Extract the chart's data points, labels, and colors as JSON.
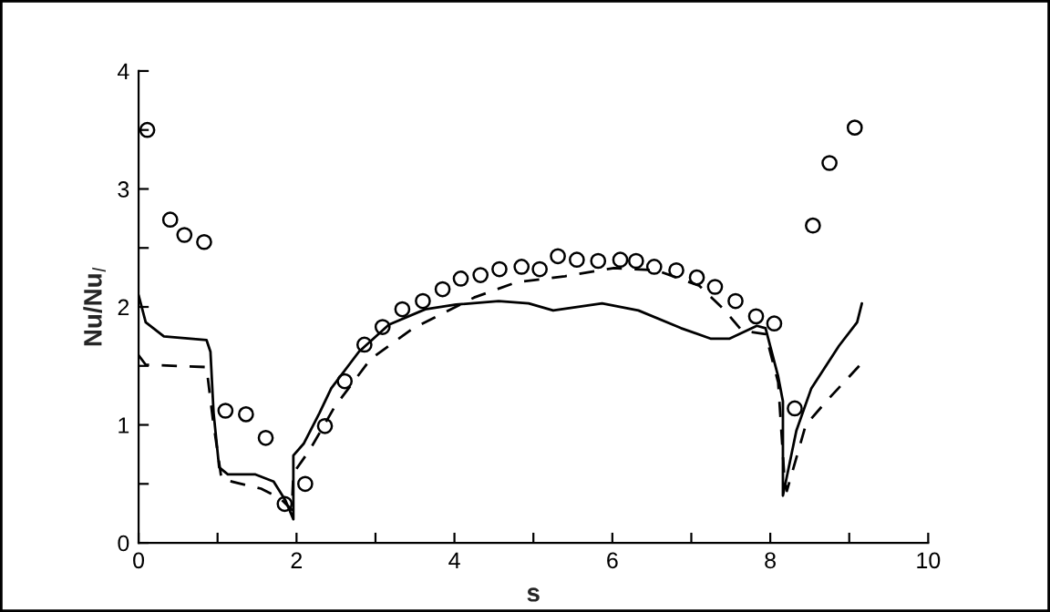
{
  "chart_data": {
    "type": "line",
    "xlabel": "s",
    "ylabel": "Nu/Nu$_{l}$",
    "xlim": [
      0,
      10
    ],
    "ylim": [
      0,
      4
    ],
    "xticks": [
      0,
      {
        "value": 1,
        "label": null
      },
      2,
      {
        "value": 3,
        "label": null
      },
      4,
      {
        "value": 5,
        "label": null
      },
      6,
      {
        "value": 7,
        "label": null
      },
      8,
      {
        "value": 9,
        "label": null
      },
      10
    ],
    "yticks": [
      0,
      {
        "value": 0.5,
        "label": null
      },
      1,
      {
        "value": 1.5,
        "label": null
      },
      2,
      {
        "value": 2.5,
        "label": null
      },
      3,
      {
        "value": 3.5,
        "label": null
      },
      4
    ],
    "grid": false,
    "legend": false,
    "series": [
      {
        "type": "scatter",
        "marker": "circle",
        "color": "#000000",
        "x": [
          0.11,
          0.4,
          0.58,
          0.83,
          1.1,
          1.36,
          1.61,
          1.85,
          2.11,
          2.36,
          2.61,
          2.86,
          3.09,
          3.34,
          3.6,
          3.85,
          4.08,
          4.33,
          4.57,
          4.85,
          5.08,
          5.31,
          5.55,
          5.82,
          6.1,
          6.3,
          6.53,
          6.81,
          7.07,
          7.3,
          7.56,
          7.82,
          8.05,
          8.31,
          8.54,
          8.75,
          9.07
        ],
        "values": [
          3.5,
          2.74,
          2.61,
          2.55,
          1.12,
          1.09,
          0.89,
          0.33,
          0.5,
          0.99,
          1.37,
          1.68,
          1.83,
          1.98,
          2.05,
          2.15,
          2.24,
          2.27,
          2.32,
          2.34,
          2.32,
          2.43,
          2.4,
          2.39,
          2.4,
          2.39,
          2.34,
          2.31,
          2.25,
          2.17,
          2.05,
          1.92,
          1.86,
          1.14,
          2.69,
          3.22,
          3.52
        ]
      },
      {
        "type": "line",
        "marker": "none",
        "line_style": "solid",
        "color": "#000000",
        "x": [
          0,
          0.09,
          0.32,
          0.86,
          0.91,
          0.95,
          1.02,
          1.13,
          1.48,
          1.71,
          1.86,
          1.96,
          1.96,
          2.09,
          2.29,
          2.44,
          2.79,
          3.17,
          3.63,
          4.02,
          4.56,
          4.94,
          5.25,
          5.87,
          6.33,
          6.87,
          7.25,
          7.48,
          7.83,
          7.94,
          8.1,
          8.16,
          8.16,
          8.33,
          8.52,
          8.87,
          9.1,
          9.16
        ],
        "values": [
          2.1,
          1.87,
          1.75,
          1.72,
          1.62,
          1.1,
          0.64,
          0.58,
          0.58,
          0.52,
          0.36,
          0.2,
          0.74,
          0.84,
          1.1,
          1.31,
          1.62,
          1.85,
          1.98,
          2.02,
          2.05,
          2.03,
          1.97,
          2.03,
          1.97,
          1.82,
          1.73,
          1.73,
          1.84,
          1.82,
          1.41,
          1.2,
          0.4,
          0.95,
          1.31,
          1.67,
          1.87,
          2.03
        ]
      },
      {
        "type": "line",
        "marker": "none",
        "line_style": "dashed",
        "color": "#000000",
        "x": [
          0,
          0.09,
          0.86,
          0.94,
          1.05,
          1.55,
          1.79,
          1.94,
          1.96,
          2.17,
          2.48,
          2.94,
          3.48,
          4.25,
          4.79,
          5.4,
          6.02,
          6.56,
          7.1,
          7.41,
          7.64,
          7.94,
          8.1,
          8.18,
          8.21,
          8.45,
          8.71,
          9.14
        ],
        "values": [
          1.59,
          1.51,
          1.49,
          1.05,
          0.54,
          0.46,
          0.38,
          0.28,
          0.59,
          0.79,
          1.15,
          1.56,
          1.82,
          2.08,
          2.21,
          2.26,
          2.33,
          2.31,
          2.18,
          1.98,
          1.8,
          1.77,
          1.36,
          0.54,
          0.44,
          1.0,
          1.2,
          1.51
        ]
      }
    ]
  }
}
